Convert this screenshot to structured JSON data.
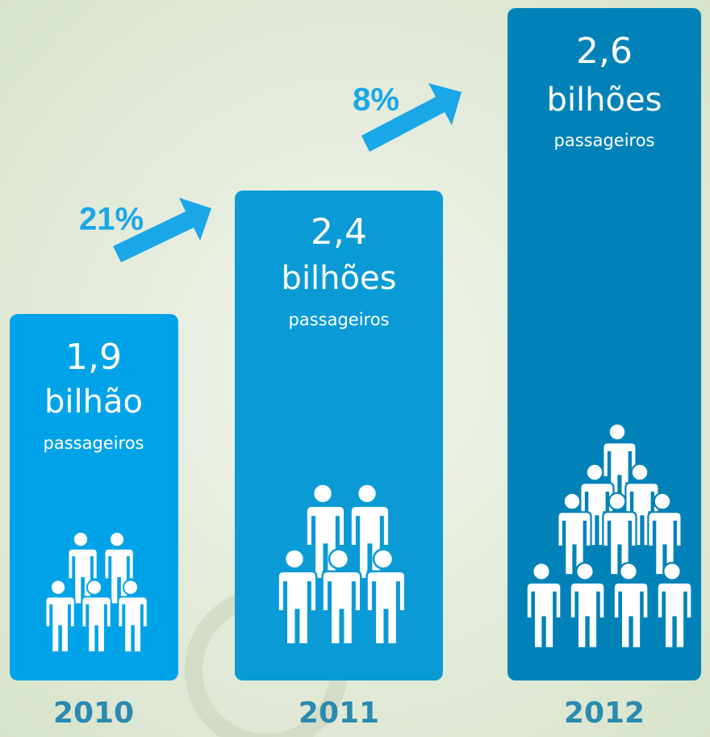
{
  "panels": [
    {
      "value": "1,9",
      "unit": "bilhão",
      "label": "passageiros",
      "year": "2010"
    },
    {
      "value": "2,4",
      "unit": "bilhões",
      "label": "passageiros",
      "year": "2011"
    },
    {
      "value": "2,6",
      "unit": "bilhões",
      "label": "passageiros",
      "year": "2012"
    }
  ],
  "growth": [
    "21%",
    "8%"
  ]
}
